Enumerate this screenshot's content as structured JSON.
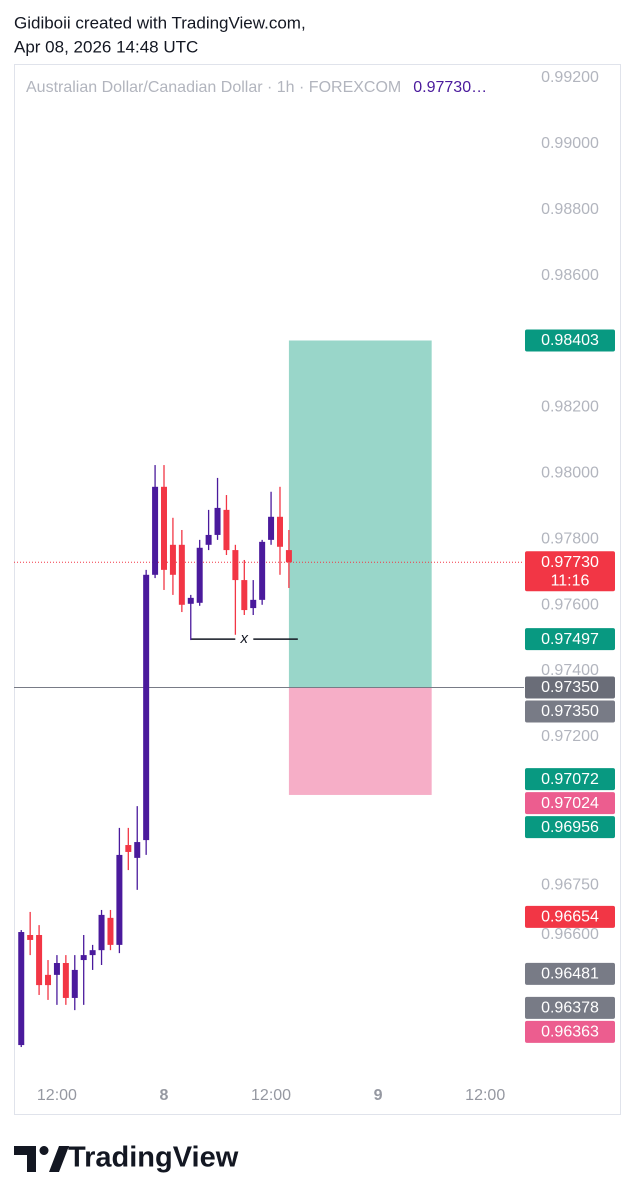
{
  "header": {
    "author_line": "Gidiboii created with TradingView.com,",
    "date_line": "Apr 08, 2026 14:48 UTC"
  },
  "footer": {
    "brand": "TradingView"
  },
  "chart_data": {
    "type": "candlestick",
    "legend": "Australian Dollar/Canadian Dollar · 1h · FOREXCOM",
    "legend_price": "0.97730…",
    "up_color": "#4a1a9c",
    "down_color": "#f23645",
    "x": [
      8,
      9,
      10,
      11,
      12,
      13,
      14,
      15,
      16,
      17,
      18,
      19,
      20,
      21,
      22,
      23,
      24,
      25,
      26,
      27,
      28,
      29,
      30,
      31,
      32,
      33,
      34,
      35,
      36,
      37,
      38
    ],
    "open": [
      0.96265,
      0.96599,
      0.96599,
      0.96478,
      0.96478,
      0.96514,
      0.96408,
      0.96523,
      0.96538,
      0.96553,
      0.96651,
      0.96569,
      0.96872,
      0.96833,
      0.96887,
      0.97692,
      0.97959,
      0.97783,
      0.97783,
      0.97604,
      0.97607,
      0.97783,
      0.97813,
      0.97889,
      0.97767,
      0.97676,
      0.97591,
      0.97616,
      0.97798,
      0.97868,
      0.97767
    ],
    "high": [
      0.96614,
      0.96669,
      0.96629,
      0.96523,
      0.96538,
      0.96538,
      0.96538,
      0.96599,
      0.96569,
      0.96675,
      0.96675,
      0.96924,
      0.96924,
      0.9699,
      0.97707,
      0.98025,
      0.98025,
      0.97865,
      0.97828,
      0.97631,
      0.97798,
      0.97889,
      0.97986,
      0.97934,
      0.97783,
      0.97737,
      0.97676,
      0.97798,
      0.97944,
      0.97959,
      0.97828
    ],
    "low": [
      0.96259,
      0.96538,
      0.96417,
      0.96402,
      0.96387,
      0.96387,
      0.96371,
      0.96387,
      0.96493,
      0.96508,
      0.96553,
      0.96544,
      0.96796,
      0.96736,
      0.96842,
      0.97682,
      0.97646,
      0.97631,
      0.97579,
      0.97494,
      0.97598,
      0.97767,
      0.97798,
      0.97752,
      0.9751,
      0.9757,
      0.9757,
      0.97601,
      0.97783,
      0.97692,
      0.97652
    ],
    "close": [
      0.96608,
      0.96584,
      0.96447,
      0.96447,
      0.96514,
      0.96408,
      0.96493,
      0.96538,
      0.96553,
      0.9666,
      0.96569,
      0.96842,
      0.96851,
      0.96881,
      0.97692,
      0.97959,
      0.97707,
      0.97692,
      0.97601,
      0.97622,
      0.97774,
      0.97813,
      0.97895,
      0.97767,
      0.97676,
      0.97585,
      0.97616,
      0.97792,
      0.97868,
      0.97777,
      0.9773
    ],
    "xlim": [
      7.3,
      63.9
    ],
    "xticks": [
      {
        "value": 12,
        "label": "12:00"
      },
      {
        "value": 24,
        "label": "8"
      },
      {
        "value": 36,
        "label": "12:00"
      },
      {
        "value": 48,
        "label": "9"
      },
      {
        "value": 60,
        "label": "12:00"
      }
    ],
    "ylim": [
      0.96159,
      0.99242
    ],
    "yticks": [
      {
        "value": 0.992,
        "label": "0.99200"
      },
      {
        "value": 0.99,
        "label": "0.99000"
      },
      {
        "value": 0.988,
        "label": "0.98800"
      },
      {
        "value": 0.986,
        "label": "0.98600"
      },
      {
        "value": 0.982,
        "label": "0.98200"
      },
      {
        "value": 0.98,
        "label": "0.98000"
      },
      {
        "value": 0.978,
        "label": "0.97800"
      },
      {
        "value": 0.976,
        "label": "0.97600"
      },
      {
        "value": 0.974,
        "label": "0.97400"
      },
      {
        "value": 0.972,
        "label": "0.97200"
      },
      {
        "value": 0.9675,
        "label": "0.96750"
      },
      {
        "value": 0.966,
        "label": "0.96600"
      }
    ],
    "price_labels": [
      {
        "value": 0.98403,
        "label": "0.98403",
        "color": "#089981"
      },
      {
        "value": 0.9773,
        "label": "0.97730",
        "color": "#f23645",
        "countdown": "11:16"
      },
      {
        "value": 0.97497,
        "label": "0.97497",
        "color": "#089981"
      },
      {
        "value": 0.9735,
        "label": "0.97350",
        "color": "#6a6d78"
      },
      {
        "value": 0.9735,
        "label": "0.97350",
        "color": "#787b86"
      },
      {
        "value": 0.97072,
        "label": "0.97072",
        "color": "#089981"
      },
      {
        "value": 0.97024,
        "label": "0.97024",
        "color": "#ec5d8f"
      },
      {
        "value": 0.96956,
        "label": "0.96956",
        "color": "#089981"
      },
      {
        "value": 0.96654,
        "label": "0.96654",
        "color": "#f23645"
      },
      {
        "value": 0.96481,
        "label": "0.96481",
        "color": "#787b86"
      },
      {
        "value": 0.96378,
        "label": "0.96378",
        "color": "#787b86"
      },
      {
        "value": 0.96363,
        "label": "0.96363",
        "color": "#ec5d8f"
      }
    ],
    "position": {
      "x_start": 38,
      "x_end": 54,
      "profit_color": "#99d6c9",
      "loss_color": "#f6aec7"
    },
    "annotation": {
      "text": "x",
      "x_start": 27,
      "x_end": 39
    }
  }
}
